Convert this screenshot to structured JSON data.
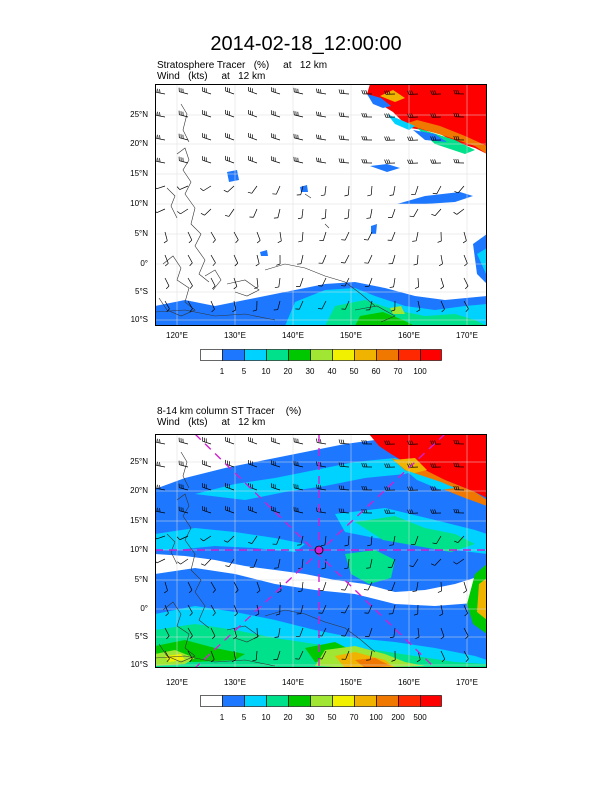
{
  "title": "2014-02-18_12:00:00",
  "panels": [
    {
      "subtitle_line1": "Stratosphere Tracer   (%)     at   12 km",
      "subtitle_line2": "Wind   (kts)     at   12 km",
      "lat_labels": [
        "25°N",
        "20°N",
        "15°N",
        "10°N",
        "5°N",
        "0°",
        "5°S",
        "10°S"
      ],
      "lon_labels": [
        "120°E",
        "130°E",
        "140°E",
        "150°E",
        "160°E",
        "170°E"
      ],
      "colorbar_labels": [
        "1",
        "5",
        "10",
        "20",
        "30",
        "40",
        "50",
        "60",
        "70",
        "100"
      ]
    },
    {
      "subtitle_line1": "8-14 km column ST Tracer    (%)",
      "subtitle_line2": "Wind   (kts)     at   12 km",
      "lat_labels": [
        "25°N",
        "20°N",
        "15°N",
        "10°N",
        "5°N",
        "0°",
        "5°S",
        "10°S"
      ],
      "lon_labels": [
        "120°E",
        "130°E",
        "140°E",
        "150°E",
        "160°E",
        "170°E"
      ],
      "colorbar_labels": [
        "1",
        "5",
        "10",
        "20",
        "30",
        "50",
        "70",
        "100",
        "200",
        "500"
      ]
    }
  ],
  "colors": {
    "levels": [
      "#ffffff",
      "#1e78ff",
      "#00d2ff",
      "#00e18c",
      "#00c800",
      "#a0e632",
      "#f0f000",
      "#f0b400",
      "#f07800",
      "#ff2800",
      "#ff0000"
    ],
    "cross_marker": "#d020d0"
  },
  "chart_data": [
    {
      "type": "heatmap",
      "title": "2014-02-18_12:00:00",
      "variable": "Stratosphere Tracer (%) at 12 km",
      "overlay": "Wind (kts) at 12 km",
      "xlabel": "",
      "ylabel": "",
      "xlim": [
        115,
        173
      ],
      "ylim": [
        -10,
        29
      ],
      "x_ticks": [
        120,
        130,
        140,
        150,
        160,
        170
      ],
      "y_ticks": [
        25,
        20,
        15,
        10,
        5,
        0,
        -5,
        -10
      ],
      "levels": [
        1,
        5,
        10,
        20,
        30,
        40,
        50,
        60,
        70,
        100
      ],
      "grid": true,
      "legend": "bottom colorbar"
    },
    {
      "type": "heatmap",
      "variable": "8-14 km column ST Tracer (%)",
      "overlay": "Wind (kts) at 12 km",
      "xlabel": "",
      "ylabel": "",
      "xlim": [
        115,
        173
      ],
      "ylim": [
        -10,
        29
      ],
      "x_ticks": [
        120,
        130,
        140,
        150,
        160,
        170
      ],
      "y_ticks": [
        25,
        20,
        15,
        10,
        5,
        0,
        -5,
        -10
      ],
      "levels": [
        1,
        5,
        10,
        20,
        30,
        50,
        70,
        100,
        200,
        500
      ],
      "grid": true,
      "legend": "bottom colorbar",
      "cross_section_center": [
        145.3,
        10
      ]
    }
  ]
}
